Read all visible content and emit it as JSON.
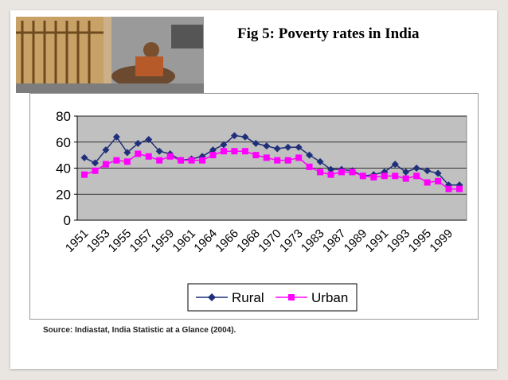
{
  "slide": {
    "title": "Fig 5: Poverty rates in India",
    "source": "Source:  Indiastat, India Statistic at a Glance (2004).",
    "photo_icon": "street-scene-photo-icon"
  },
  "colors": {
    "rural": "#1f2f7a",
    "urban": "#ff00ff",
    "plot_bg": "#c0c0c0",
    "background": "#e9e6e1"
  },
  "chart_data": {
    "type": "line",
    "title": "",
    "xlabel": "",
    "ylabel": "",
    "ylim": [
      0,
      80
    ],
    "yticks": [
      0,
      20,
      40,
      60,
      80
    ],
    "grid": true,
    "legend_position": "bottom",
    "x": [
      "1951",
      "1952",
      "1953",
      "1954",
      "1955",
      "1956",
      "1957",
      "1958",
      "1959",
      "1960",
      "1961",
      "1962",
      "1964",
      "1965",
      "1966",
      "1967",
      "1968",
      "1969",
      "1970",
      "1972",
      "1973",
      "1977",
      "1983",
      "1986",
      "1987",
      "1988",
      "1989",
      "1990",
      "1991",
      "1992",
      "1993",
      "1994",
      "1995",
      "1997",
      "1999",
      "2000"
    ],
    "x_tick_labels": [
      "1951",
      "1953",
      "1955",
      "1957",
      "1959",
      "1961",
      "1964",
      "1966",
      "1968",
      "1970",
      "1973",
      "1983",
      "1987",
      "1989",
      "1991",
      "1993",
      "1995",
      "1999"
    ],
    "series": [
      {
        "name": "Rural",
        "marker": "diamond",
        "values": [
          48,
          44,
          54,
          64,
          52,
          59,
          62,
          53,
          51,
          46,
          47,
          49,
          54,
          58,
          65,
          64,
          59,
          57,
          55,
          56,
          56,
          50,
          45,
          39,
          39,
          38,
          34,
          35,
          37,
          43,
          37,
          40,
          38,
          36,
          27,
          27
        ]
      },
      {
        "name": "Urban",
        "marker": "square",
        "values": [
          35,
          38,
          43,
          46,
          45,
          51,
          49,
          46,
          49,
          46,
          46,
          46,
          50,
          53,
          53,
          53,
          50,
          48,
          46,
          46,
          48,
          41,
          37,
          35,
          37,
          37,
          34,
          33,
          34,
          34,
          32,
          34,
          29,
          30,
          24,
          24
        ]
      }
    ]
  }
}
